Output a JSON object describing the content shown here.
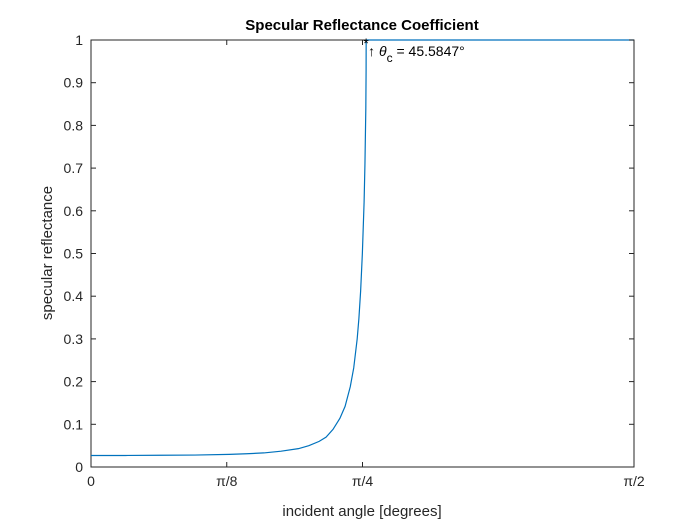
{
  "chart_data": {
    "type": "line",
    "title": "Specular Reflectance Coefficient",
    "xlabel": "incident angle [degrees]",
    "ylabel": "specular reflectance",
    "xlim": [
      0,
      1.5708
    ],
    "ylim": [
      0,
      1
    ],
    "xticks": [
      {
        "value": 0,
        "label": "0"
      },
      {
        "value": 0.3927,
        "label": "π/8"
      },
      {
        "value": 0.7854,
        "label": "π/4"
      },
      {
        "value": 1.5708,
        "label": "π/2"
      }
    ],
    "yticks": [
      {
        "value": 0,
        "label": "0"
      },
      {
        "value": 0.1,
        "label": "0.1"
      },
      {
        "value": 0.2,
        "label": "0.2"
      },
      {
        "value": 0.3,
        "label": "0.3"
      },
      {
        "value": 0.4,
        "label": "0.4"
      },
      {
        "value": 0.5,
        "label": "0.5"
      },
      {
        "value": 0.6,
        "label": "0.6"
      },
      {
        "value": 0.7,
        "label": "0.7"
      },
      {
        "value": 0.8,
        "label": "0.8"
      },
      {
        "value": 0.9,
        "label": "0.9"
      },
      {
        "value": 1,
        "label": "1"
      }
    ],
    "grid": false,
    "box": true,
    "series": [
      {
        "color": "#0072bd",
        "x": [
          0,
          0.1,
          0.2,
          0.3,
          0.4,
          0.45,
          0.5,
          0.55,
          0.6,
          0.63,
          0.66,
          0.68,
          0.7,
          0.72,
          0.735,
          0.75,
          0.76,
          0.77,
          0.775,
          0.78,
          0.785,
          0.79,
          0.7925,
          0.795,
          0.7958,
          0.796,
          0.9,
          1.1,
          1.3,
          1.5708
        ],
        "y": [
          0.027,
          0.027,
          0.0275,
          0.028,
          0.0295,
          0.031,
          0.033,
          0.037,
          0.043,
          0.05,
          0.06,
          0.07,
          0.088,
          0.114,
          0.142,
          0.188,
          0.232,
          0.3,
          0.348,
          0.412,
          0.5,
          0.62,
          0.71,
          0.84,
          0.93,
          1,
          1,
          1,
          1,
          1
        ]
      }
    ],
    "annotation": {
      "marker": "*",
      "marker_x": 0.7958,
      "marker_y": 1,
      "arrow": "↑",
      "symbol": "θ",
      "subscript": "c",
      "text": " = 45.5847°"
    }
  }
}
